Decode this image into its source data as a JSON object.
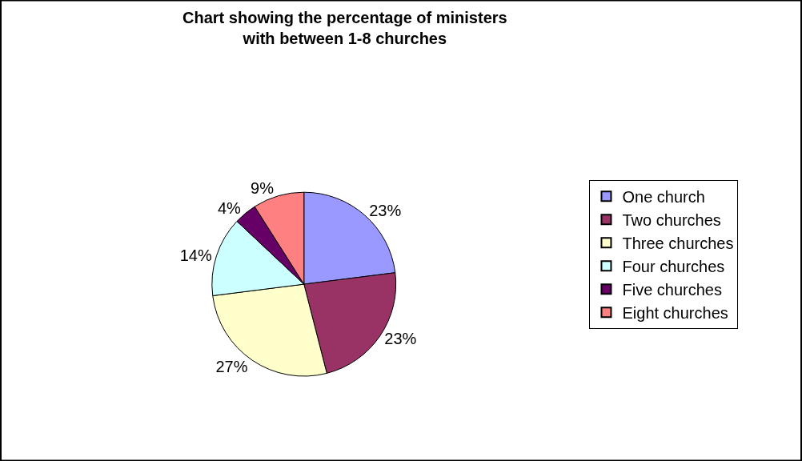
{
  "chart_data": {
    "type": "pie",
    "title": "Chart showing the percentage of ministers with between 1-8 churches",
    "categories": [
      "One church",
      "Two churches",
      "Three churches",
      "Four churches",
      "Five churches",
      "Eight churches"
    ],
    "values": [
      23,
      23,
      27,
      14,
      4,
      9
    ],
    "colors": [
      "#9999ff",
      "#993366",
      "#ffffcc",
      "#ccffff",
      "#660066",
      "#ff8080"
    ],
    "value_labels": [
      "23%",
      "23%",
      "27%",
      "14%",
      "4%",
      "9%"
    ],
    "legend": "right"
  }
}
